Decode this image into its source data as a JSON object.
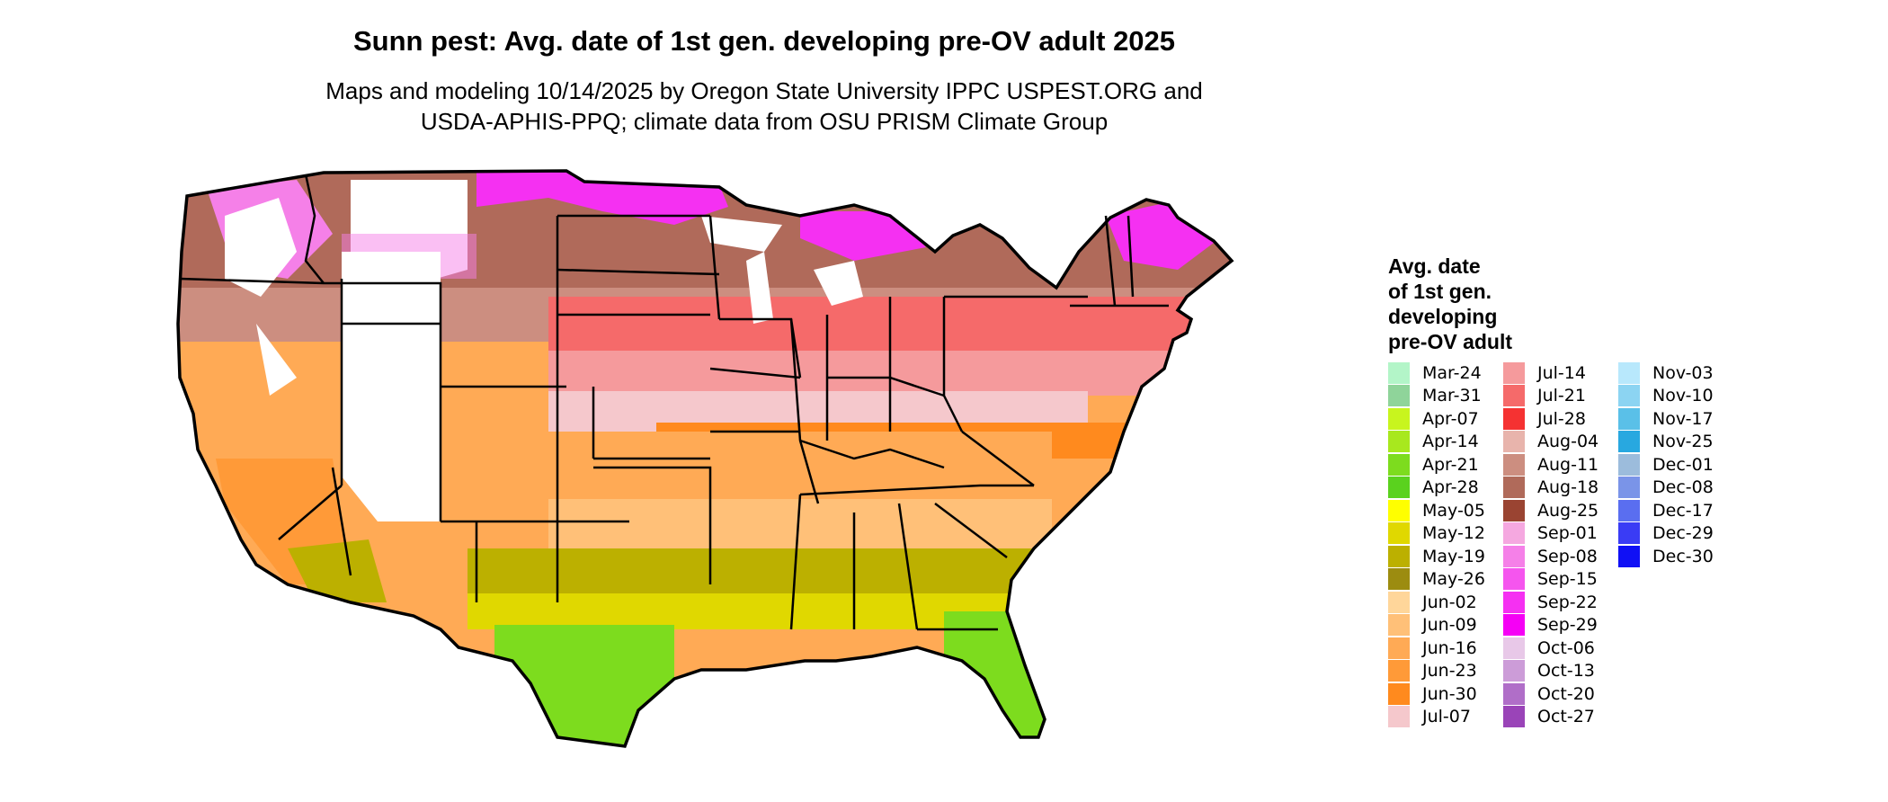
{
  "title": "Sunn pest: Avg. date of 1st gen. developing pre-OV adult 2025",
  "subtitle_line1": "Maps and modeling 10/14/2025 by Oregon State University IPPC USPEST.ORG and",
  "subtitle_line2": "USDA-APHIS-PPQ; climate data from OSU PRISM Climate Group",
  "legend": {
    "title_lines": [
      "Avg. date",
      "of 1st gen.",
      "developing",
      "pre-OV adult"
    ],
    "items": [
      {
        "label": "Mar-24",
        "color": "#b3f5c8"
      },
      {
        "label": "Mar-31",
        "color": "#8fd49a"
      },
      {
        "label": "Apr-07",
        "color": "#c8f51e"
      },
      {
        "label": "Apr-14",
        "color": "#a8e81e"
      },
      {
        "label": "Apr-21",
        "color": "#7ddc1e"
      },
      {
        "label": "Apr-28",
        "color": "#5ad21e"
      },
      {
        "label": "May-05",
        "color": "#ffff00"
      },
      {
        "label": "May-12",
        "color": "#e0d800"
      },
      {
        "label": "May-19",
        "color": "#bcb000"
      },
      {
        "label": "May-26",
        "color": "#9c8c10"
      },
      {
        "label": "Jun-02",
        "color": "#ffd69a"
      },
      {
        "label": "Jun-09",
        "color": "#ffc078"
      },
      {
        "label": "Jun-16",
        "color": "#ffaa55"
      },
      {
        "label": "Jun-23",
        "color": "#ff9a38"
      },
      {
        "label": "Jun-30",
        "color": "#ff8a1e"
      },
      {
        "label": "Jul-07",
        "color": "#f5c8cc"
      },
      {
        "label": "Jul-14",
        "color": "#f59a9c"
      },
      {
        "label": "Jul-21",
        "color": "#f56a6a"
      },
      {
        "label": "Jul-28",
        "color": "#f53232"
      },
      {
        "label": "Aug-04",
        "color": "#e8b4ac"
      },
      {
        "label": "Aug-11",
        "color": "#cc8e80"
      },
      {
        "label": "Aug-18",
        "color": "#b06a5a"
      },
      {
        "label": "Aug-25",
        "color": "#9a4432"
      },
      {
        "label": "Sep-01",
        "color": "#f5a8e0"
      },
      {
        "label": "Sep-08",
        "color": "#f580e8"
      },
      {
        "label": "Sep-15",
        "color": "#f555ee"
      },
      {
        "label": "Sep-22",
        "color": "#f530f2"
      },
      {
        "label": "Sep-29",
        "color": "#f500f5"
      },
      {
        "label": "Oct-06",
        "color": "#e8c8e8"
      },
      {
        "label": "Oct-13",
        "color": "#cc9cd8"
      },
      {
        "label": "Oct-20",
        "color": "#b06ec8"
      },
      {
        "label": "Oct-27",
        "color": "#9a44b8"
      },
      {
        "label": "Nov-03",
        "color": "#b8e8fc"
      },
      {
        "label": "Nov-10",
        "color": "#8cd4f2"
      },
      {
        "label": "Nov-17",
        "color": "#5ac0e8"
      },
      {
        "label": "Nov-25",
        "color": "#28a8e0"
      },
      {
        "label": "Dec-01",
        "color": "#9cbcdc"
      },
      {
        "label": "Dec-08",
        "color": "#7a94e8"
      },
      {
        "label": "Dec-17",
        "color": "#5a6ef0"
      },
      {
        "label": "Dec-29",
        "color": "#3a3cf5"
      },
      {
        "label": "Dec-30",
        "color": "#1010f5"
      }
    ]
  }
}
